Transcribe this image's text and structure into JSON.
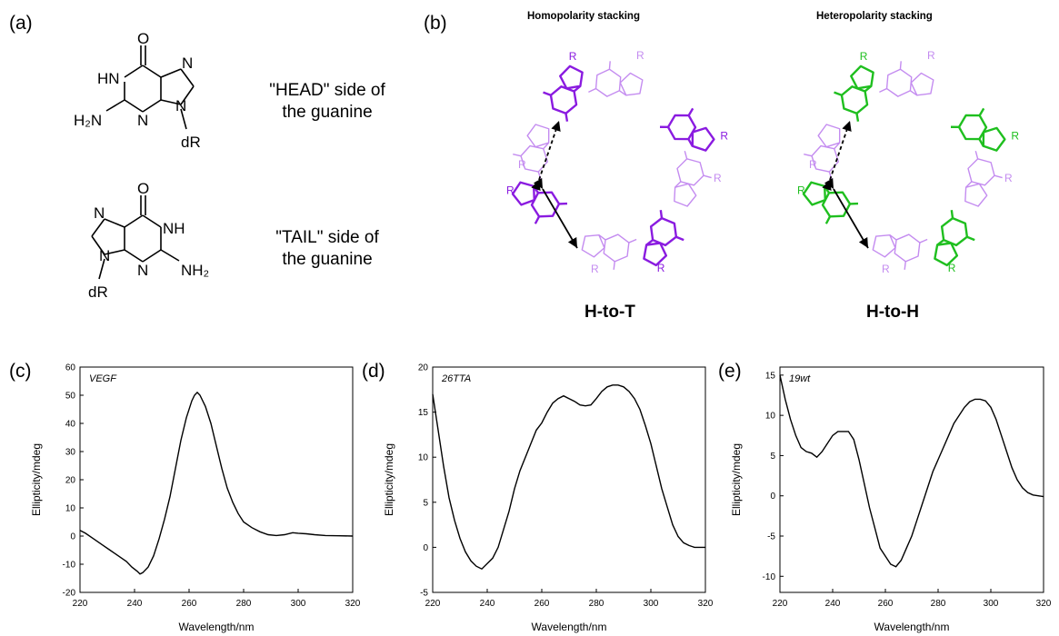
{
  "panels": {
    "a": "(a)",
    "b": "(b)",
    "c": "(c)",
    "d": "(d)",
    "e": "(e)"
  },
  "head_side": {
    "line1": "\"HEAD\" side of",
    "line2": "the guanine"
  },
  "tail_side": {
    "line1": "\"TAIL\" side of",
    "line2": "the guanine"
  },
  "chem_labels": {
    "carbonyl": "O",
    "nh": "HN",
    "nh_tail": "NH",
    "n": "N",
    "amino_head": "H₂N",
    "amino_tail": "NH₂",
    "sugar": "dR",
    "r": "R"
  },
  "stacking": {
    "homo_title": "Homopolarity stacking",
    "hetero_title": "Heteropolarity stacking",
    "homo_label": "H-to-T",
    "hetero_label": "H-to-H",
    "homo_color": "#8a1be0",
    "homo_light": "#c48cf0",
    "hetero_color": "#1fbf1f",
    "hetero_light": "#c48cf0"
  },
  "chart_data": [
    {
      "type": "line",
      "annotation": "VEGF",
      "xlabel": "Wavelength/nm",
      "ylabel": "Ellipticity/mdeg",
      "xlim": [
        220,
        320
      ],
      "ylim": [
        -20,
        60
      ],
      "xticks": [
        220,
        240,
        260,
        280,
        300,
        320
      ],
      "yticks": [
        -20,
        -10,
        0,
        10,
        20,
        30,
        40,
        50,
        60
      ],
      "grid": false,
      "x": [
        220,
        222,
        225,
        228,
        231,
        234,
        237,
        239,
        241,
        242,
        243,
        245,
        247,
        249,
        251,
        253,
        255,
        257,
        259,
        261,
        262,
        263,
        264,
        266,
        268,
        270,
        272,
        274,
        276,
        278,
        280,
        283,
        286,
        289,
        292,
        295,
        298,
        300,
        303,
        306,
        310,
        315,
        320
      ],
      "y": [
        2,
        1,
        -1,
        -3,
        -5,
        -7,
        -9,
        -11,
        -12.5,
        -13.5,
        -13,
        -11,
        -7,
        -1,
        6,
        14,
        24,
        34,
        42,
        48,
        50,
        51,
        50,
        46,
        40,
        32,
        24,
        17,
        12,
        8,
        5,
        3,
        1.5,
        0.5,
        0.2,
        0.5,
        1.2,
        1,
        0.8,
        0.5,
        0.2,
        0.1,
        0
      ]
    },
    {
      "type": "line",
      "annotation": "26TTA",
      "xlabel": "Wavelength/nm",
      "ylabel": "Ellipticity/mdeg",
      "xlim": [
        220,
        320
      ],
      "ylim": [
        -5,
        20
      ],
      "xticks": [
        220,
        240,
        260,
        280,
        300,
        320
      ],
      "yticks": [
        -5,
        0,
        5,
        10,
        15,
        20
      ],
      "grid": false,
      "x": [
        220,
        222,
        224,
        226,
        228,
        230,
        232,
        234,
        236,
        238,
        240,
        242,
        244,
        246,
        248,
        250,
        252,
        254,
        256,
        258,
        260,
        262,
        264,
        266,
        268,
        270,
        272,
        274,
        276,
        278,
        280,
        282,
        284,
        286,
        288,
        290,
        292,
        294,
        296,
        298,
        300,
        302,
        304,
        306,
        308,
        310,
        312,
        314,
        316,
        318,
        320
      ],
      "y": [
        17,
        13,
        9,
        5.5,
        3,
        1,
        -0.5,
        -1.5,
        -2.1,
        -2.4,
        -1.8,
        -1.2,
        0,
        2,
        4,
        6.5,
        8.5,
        10,
        11.5,
        13,
        13.8,
        15,
        16,
        16.5,
        16.8,
        16.5,
        16.2,
        15.8,
        15.7,
        15.8,
        16.5,
        17.3,
        17.8,
        18,
        18,
        17.8,
        17.3,
        16.5,
        15.3,
        13.5,
        11.5,
        9,
        6.5,
        4.5,
        2.5,
        1.2,
        0.5,
        0.2,
        0,
        0,
        0
      ]
    },
    {
      "type": "line",
      "annotation": "19wt",
      "xlabel": "Wavelength/nm",
      "ylabel": "Ellipticity/mdeg",
      "xlim": [
        220,
        320
      ],
      "ylim": [
        -12,
        16
      ],
      "xticks": [
        220,
        240,
        260,
        280,
        300,
        320
      ],
      "yticks": [
        -10,
        -5,
        0,
        5,
        10,
        15
      ],
      "grid": false,
      "x": [
        220,
        222,
        224,
        226,
        228,
        230,
        232,
        234,
        236,
        238,
        240,
        242,
        244,
        246,
        248,
        250,
        252,
        254,
        256,
        258,
        260,
        262,
        264,
        266,
        268,
        270,
        272,
        274,
        276,
        278,
        280,
        282,
        284,
        286,
        288,
        290,
        292,
        294,
        296,
        298,
        300,
        302,
        304,
        306,
        308,
        310,
        312,
        314,
        316,
        318,
        320
      ],
      "y": [
        15,
        12,
        9.5,
        7.5,
        6,
        5.5,
        5.3,
        4.8,
        5.5,
        6.5,
        7.5,
        8,
        8,
        8,
        7,
        4.5,
        1.5,
        -1.5,
        -4,
        -6.5,
        -7.5,
        -8.5,
        -8.8,
        -8,
        -6.5,
        -5,
        -3,
        -1,
        1,
        3,
        4.5,
        6,
        7.5,
        9,
        10,
        11,
        11.7,
        12,
        12,
        11.8,
        11,
        9.5,
        7.5,
        5.5,
        3.5,
        2,
        1,
        0.4,
        0.1,
        0,
        -0.1
      ]
    }
  ]
}
